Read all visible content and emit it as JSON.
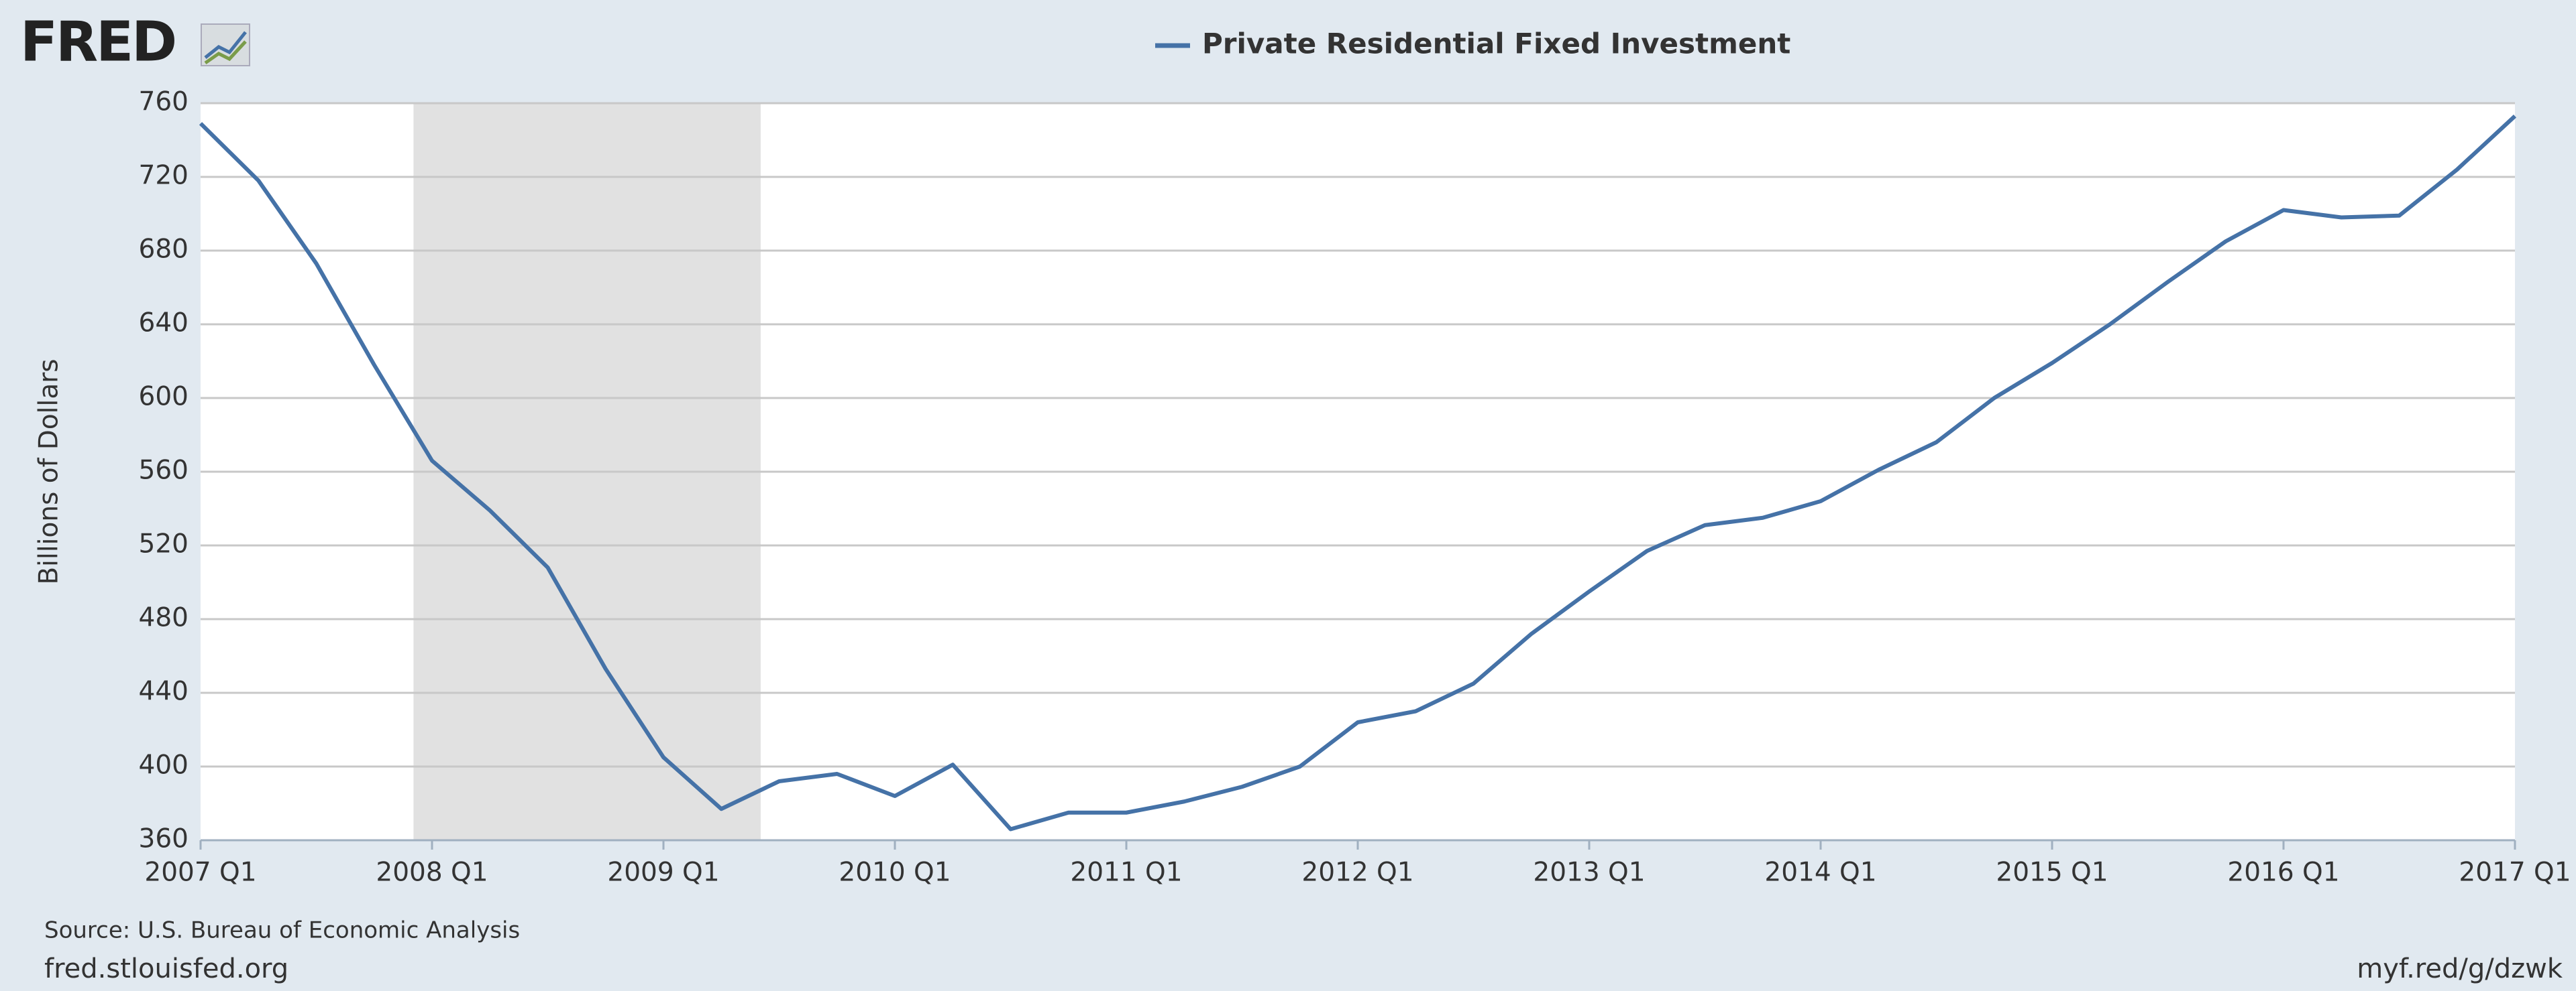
{
  "logo": "FRED",
  "source": "Source: U.S. Bureau of Economic Analysis",
  "site": "fred.stlouisfed.org",
  "short_link": "myf.red/g/dzwk",
  "chart_data": {
    "type": "line",
    "y_label": "Billions of Dollars",
    "x": [
      2007,
      2007.25,
      2007.5,
      2007.75,
      2008,
      2008.25,
      2008.5,
      2008.75,
      2009,
      2009.25,
      2009.5,
      2009.75,
      2010,
      2010.25,
      2010.5,
      2010.75,
      2011,
      2011.25,
      2011.5,
      2011.75,
      2012,
      2012.25,
      2012.5,
      2012.75,
      2013,
      2013.25,
      2013.5,
      2013.75,
      2014,
      2014.25,
      2014.5,
      2014.75,
      2015,
      2015.25,
      2015.5,
      2015.75,
      2016,
      2016.25,
      2016.5,
      2016.75,
      2017
    ],
    "series": [
      {
        "name": "Private Residential Fixed Investment",
        "color": "#4572a7",
        "values": [
          749,
          718,
          673,
          618,
          566,
          539,
          508,
          453,
          405,
          377,
          392,
          396,
          384,
          401,
          366,
          375,
          375,
          381,
          389,
          400,
          424,
          430,
          445,
          472,
          495,
          517,
          531,
          535,
          544,
          561,
          576,
          600,
          619,
          640,
          663,
          685,
          702,
          698,
          699,
          724,
          753
        ]
      }
    ],
    "shading": [
      {
        "start": 2007.92,
        "end": 2009.42,
        "color": "#e1e1e1"
      }
    ],
    "xlim": [
      2007,
      2017
    ],
    "xticks": [
      {
        "value": 2007,
        "label": "2007 Q1"
      },
      {
        "value": 2008,
        "label": "2008 Q1"
      },
      {
        "value": 2009,
        "label": "2009 Q1"
      },
      {
        "value": 2010,
        "label": "2010 Q1"
      },
      {
        "value": 2011,
        "label": "2011 Q1"
      },
      {
        "value": 2012,
        "label": "2012 Q1"
      },
      {
        "value": 2013,
        "label": "2013 Q1"
      },
      {
        "value": 2014,
        "label": "2014 Q1"
      },
      {
        "value": 2015,
        "label": "2015 Q1"
      },
      {
        "value": 2016,
        "label": "2016 Q1"
      },
      {
        "value": 2017,
        "label": "2017 Q1"
      }
    ],
    "ylim": [
      360,
      760
    ],
    "yticks": [
      360,
      400,
      440,
      480,
      520,
      560,
      600,
      640,
      680,
      720,
      760
    ],
    "grid": true
  }
}
